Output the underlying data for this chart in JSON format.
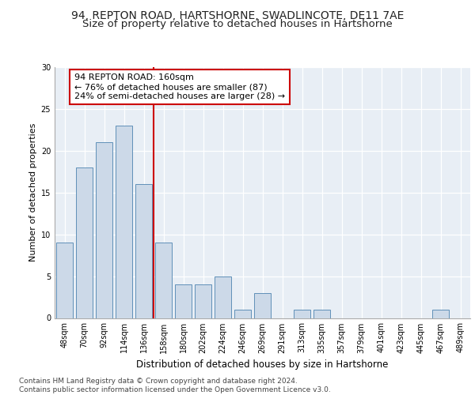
{
  "title": "94, REPTON ROAD, HARTSHORNE, SWADLINCOTE, DE11 7AE",
  "subtitle": "Size of property relative to detached houses in Hartshorne",
  "xlabel": "Distribution of detached houses by size in Hartshorne",
  "ylabel": "Number of detached properties",
  "categories": [
    "48sqm",
    "70sqm",
    "92sqm",
    "114sqm",
    "136sqm",
    "158sqm",
    "180sqm",
    "202sqm",
    "224sqm",
    "246sqm",
    "269sqm",
    "291sqm",
    "313sqm",
    "335sqm",
    "357sqm",
    "379sqm",
    "401sqm",
    "423sqm",
    "445sqm",
    "467sqm",
    "489sqm"
  ],
  "values": [
    9,
    18,
    21,
    23,
    16,
    9,
    4,
    4,
    5,
    1,
    3,
    0,
    1,
    1,
    0,
    0,
    0,
    0,
    0,
    1,
    0
  ],
  "bar_color": "#ccd9e8",
  "bar_edge_color": "#6090b8",
  "vline_index": 5,
  "vline_color": "#cc0000",
  "annotation_text": "94 REPTON ROAD: 160sqm\n← 76% of detached houses are smaller (87)\n24% of semi-detached houses are larger (28) →",
  "annotation_box_color": "#ffffff",
  "annotation_box_edge": "#cc0000",
  "ylim": [
    0,
    30
  ],
  "yticks": [
    0,
    5,
    10,
    15,
    20,
    25,
    30
  ],
  "background_color": "#e8eef5",
  "footer_text": "Contains HM Land Registry data © Crown copyright and database right 2024.\nContains public sector information licensed under the Open Government Licence v3.0.",
  "title_fontsize": 10,
  "subtitle_fontsize": 9.5,
  "xlabel_fontsize": 8.5,
  "ylabel_fontsize": 8,
  "tick_fontsize": 7,
  "annotation_fontsize": 8,
  "footer_fontsize": 6.5
}
